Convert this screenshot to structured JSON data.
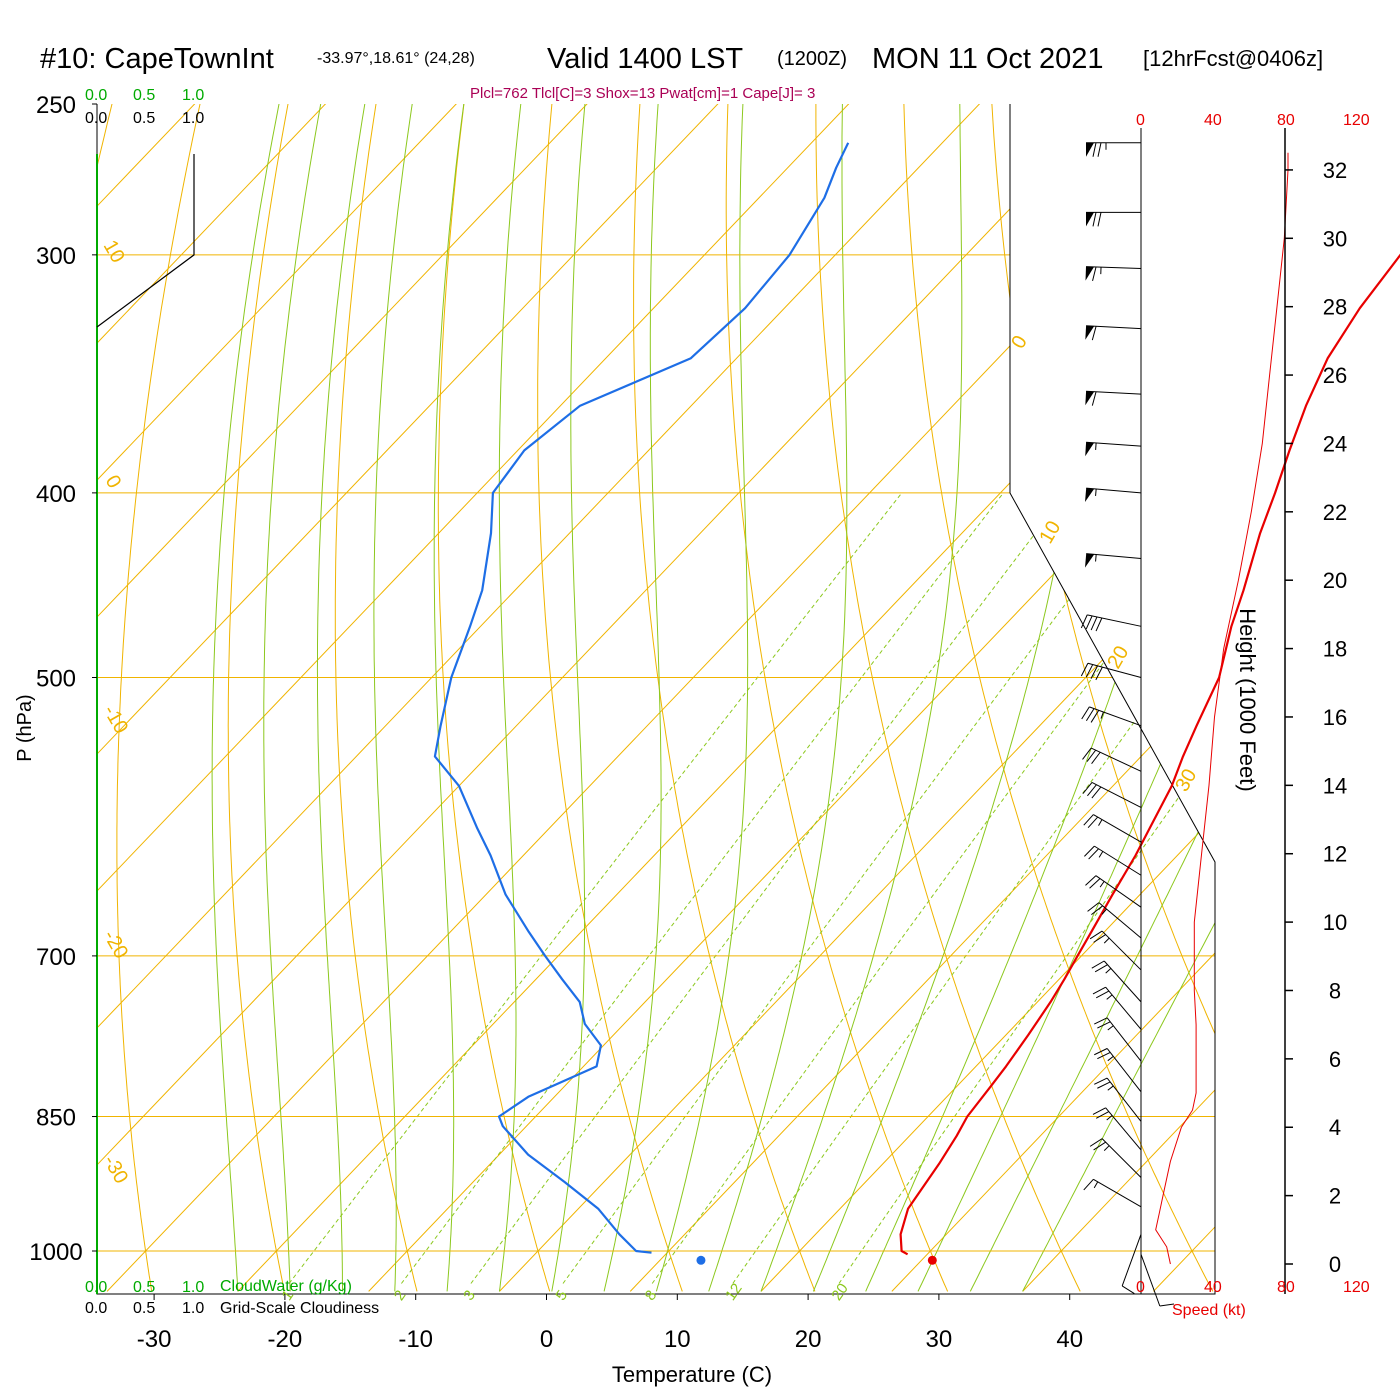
{
  "header": {
    "station": "#10: CapeTownInt",
    "coords": "-33.97°,18.61° (24,28)",
    "valid": "Valid 1400 LST",
    "utc": "(1200Z)",
    "date": "MON 11 Oct 2021",
    "forecast": "[12hrFcst@0406z]",
    "indices": "Plcl=762 Tlcl[C]=3 Shox=13 Pwat[cm]=1 Cape[J]= 3"
  },
  "colors": {
    "isotherm": "#f0b400",
    "dry_adiabat": "#f0b400",
    "moist_adiabat": "#8cc81e",
    "mixing_ratio": "#8cc81e",
    "temperature": "#e80000",
    "dewpoint": "#1e6ee6",
    "cloud_label": "#00aa00",
    "indices": "#aa0055",
    "speed": "#e80000"
  },
  "chart_data": {
    "type": "line",
    "title": "Skew-T",
    "xlabel": "Temperature (C)",
    "ylabel": "P (hPa)",
    "y2label": "Height (1000 Feet)",
    "xlim": [
      -34,
      46
    ],
    "pressure_ticks": [
      "250",
      "300",
      "400",
      "500",
      "700",
      "850",
      "1000"
    ],
    "temp_ticks": [
      "-30",
      "-20",
      "-10",
      "0",
      "10",
      "20",
      "30",
      "40"
    ],
    "height_ticks": [
      "32",
      "30",
      "28",
      "26",
      "24",
      "22",
      "20",
      "18",
      "16",
      "14",
      "12",
      "10",
      "8",
      "6",
      "4",
      "2",
      "0"
    ],
    "height_values": [
      32,
      30,
      28,
      26,
      24,
      22,
      20,
      18,
      16,
      14,
      12,
      10,
      8,
      6,
      4,
      2,
      0
    ],
    "cloud_top_labels": [
      "0.0",
      "0.5",
      "1.0"
    ],
    "cloud_bottom_labels": [
      "0.0",
      "0.5",
      "1.0"
    ],
    "cloud_water_label": "CloudWater (g/Kg)",
    "cloudiness_label": "Grid-Scale Cloudiness",
    "speed_ticks": [
      "0",
      "40",
      "80",
      "120"
    ],
    "speed_label": "Speed (kt)",
    "mixing_ratio_labels": [
      "1",
      "2",
      "3",
      "5",
      "8",
      "12",
      "20"
    ],
    "mixing_ratio_values": [
      1,
      2,
      3,
      5,
      8,
      12,
      20
    ],
    "isotherm_labels": [
      "10",
      "0",
      "-10",
      "-20",
      "-30",
      "0",
      "10",
      "20",
      "30"
    ],
    "series": [
      {
        "name": "Temperature",
        "pressure": [
          1004,
          1000,
          980,
          950,
          900,
          870,
          850,
          820,
          800,
          770,
          740,
          720,
          700,
          680,
          650,
          620,
          600,
          570,
          550,
          530,
          500,
          470,
          450,
          420,
          400,
          380,
          360,
          340,
          320,
          300,
          290,
          280,
          270,
          262
        ],
        "values": [
          28.5,
          27.8,
          26.5,
          25.2,
          24.3,
          23.6,
          23.0,
          22.6,
          22.3,
          21.7,
          21.0,
          20.4,
          19.7,
          19.0,
          17.9,
          16.8,
          15.9,
          14.5,
          13.2,
          12.0,
          10.2,
          7.4,
          5.7,
          2.8,
          1.0,
          -1.0,
          -3.0,
          -4.8,
          -6.0,
          -6.8,
          -7.0,
          -7.5,
          -8.0,
          -8.3
        ]
      },
      {
        "name": "Dewpoint",
        "pressure": [
          1002,
          1000,
          980,
          950,
          920,
          890,
          860,
          850,
          830,
          820,
          800,
          780,
          760,
          740,
          720,
          700,
          680,
          650,
          620,
          600,
          570,
          550,
          530,
          500,
          470,
          450,
          420,
          400,
          380,
          360,
          340,
          320,
          300,
          280,
          270,
          262
        ],
        "values": [
          8.8,
          7.5,
          5.0,
          1.5,
          -3.0,
          -7.8,
          -11.8,
          -12.8,
          -12.0,
          -11.0,
          -9.0,
          -10.2,
          -13.0,
          -15.0,
          -18.0,
          -21.0,
          -24.0,
          -28.5,
          -32.5,
          -35.5,
          -40.0,
          -44.0,
          -45.8,
          -48.5,
          -50.8,
          -52.5,
          -56.0,
          -58.8,
          -59.5,
          -58.5,
          -53.5,
          -53.0,
          -53.5,
          -55.0,
          -56.3,
          -57.2
        ]
      }
    ],
    "surface_points": [
      {
        "name": "dewpoint-dot",
        "temp": 12.7,
        "pressure": 1004
      },
      {
        "name": "temperature-dot",
        "temp": 29.7,
        "pressure": 1004
      }
    ],
    "cloud_fraction_profile": {
      "pressure": [
        300,
        262,
        262
      ],
      "value": [
        1.0,
        1.0,
        1.0
      ]
    },
    "wind_speed_profile": {
      "height_kft": [
        0,
        0.5,
        1,
        1.5,
        2,
        3,
        4,
        4.5,
        5,
        6,
        7,
        8,
        10,
        12,
        14,
        16,
        18,
        20,
        22,
        24,
        26,
        28,
        30,
        32,
        32.5
      ],
      "speed": [
        16,
        14,
        8,
        10,
        12,
        16,
        22,
        28,
        30,
        30,
        30,
        29,
        29,
        33,
        37,
        40,
        45,
        53,
        60,
        66,
        70,
        74,
        78,
        80,
        80
      ]
    },
    "wind_barbs": [
      {
        "height": 32.5,
        "pressure": 262,
        "speed": 75,
        "dir": 270
      },
      {
        "height": 31,
        "pressure": 285,
        "speed": 70,
        "dir": 270
      },
      {
        "height": 29.5,
        "pressure": 305,
        "speed": 65,
        "dir": 272
      },
      {
        "height": 28,
        "pressure": 328,
        "speed": 60,
        "dir": 273
      },
      {
        "height": 26.5,
        "pressure": 355,
        "speed": 60,
        "dir": 273
      },
      {
        "height": 25,
        "pressure": 378,
        "speed": 55,
        "dir": 274
      },
      {
        "height": 23.5,
        "pressure": 400,
        "speed": 55,
        "dir": 275
      },
      {
        "height": 22,
        "pressure": 433,
        "speed": 55,
        "dir": 275
      },
      {
        "height": 20,
        "pressure": 470,
        "speed": 40,
        "dir": 282
      },
      {
        "height": 18.5,
        "pressure": 500,
        "speed": 40,
        "dir": 285
      },
      {
        "height": 17,
        "pressure": 530,
        "speed": 35,
        "dir": 290
      },
      {
        "height": 15.5,
        "pressure": 560,
        "speed": 30,
        "dir": 295
      },
      {
        "height": 14.5,
        "pressure": 585,
        "speed": 30,
        "dir": 297
      },
      {
        "height": 13.5,
        "pressure": 610,
        "speed": 25,
        "dir": 300
      },
      {
        "height": 12.5,
        "pressure": 635,
        "speed": 25,
        "dir": 302
      },
      {
        "height": 11.5,
        "pressure": 660,
        "speed": 25,
        "dir": 305
      },
      {
        "height": 10.5,
        "pressure": 685,
        "speed": 25,
        "dir": 310
      },
      {
        "height": 9.5,
        "pressure": 712,
        "speed": 25,
        "dir": 315
      },
      {
        "height": 8.5,
        "pressure": 740,
        "speed": 25,
        "dir": 318
      },
      {
        "height": 7.5,
        "pressure": 765,
        "speed": 25,
        "dir": 320
      },
      {
        "height": 6.5,
        "pressure": 795,
        "speed": 25,
        "dir": 322
      },
      {
        "height": 5.5,
        "pressure": 825,
        "speed": 25,
        "dir": 322
      },
      {
        "height": 4.5,
        "pressure": 855,
        "speed": 25,
        "dir": 322
      },
      {
        "height": 3.5,
        "pressure": 885,
        "speed": 25,
        "dir": 320
      },
      {
        "height": 2.5,
        "pressure": 915,
        "speed": 25,
        "dir": 315
      },
      {
        "height": 1.5,
        "pressure": 948,
        "speed": 15,
        "dir": 300
      },
      {
        "height": 0.5,
        "pressure": 980,
        "speed": 10,
        "dir": 200
      },
      {
        "height": 0,
        "pressure": 1004,
        "speed": 10,
        "dir": 160
      }
    ]
  }
}
